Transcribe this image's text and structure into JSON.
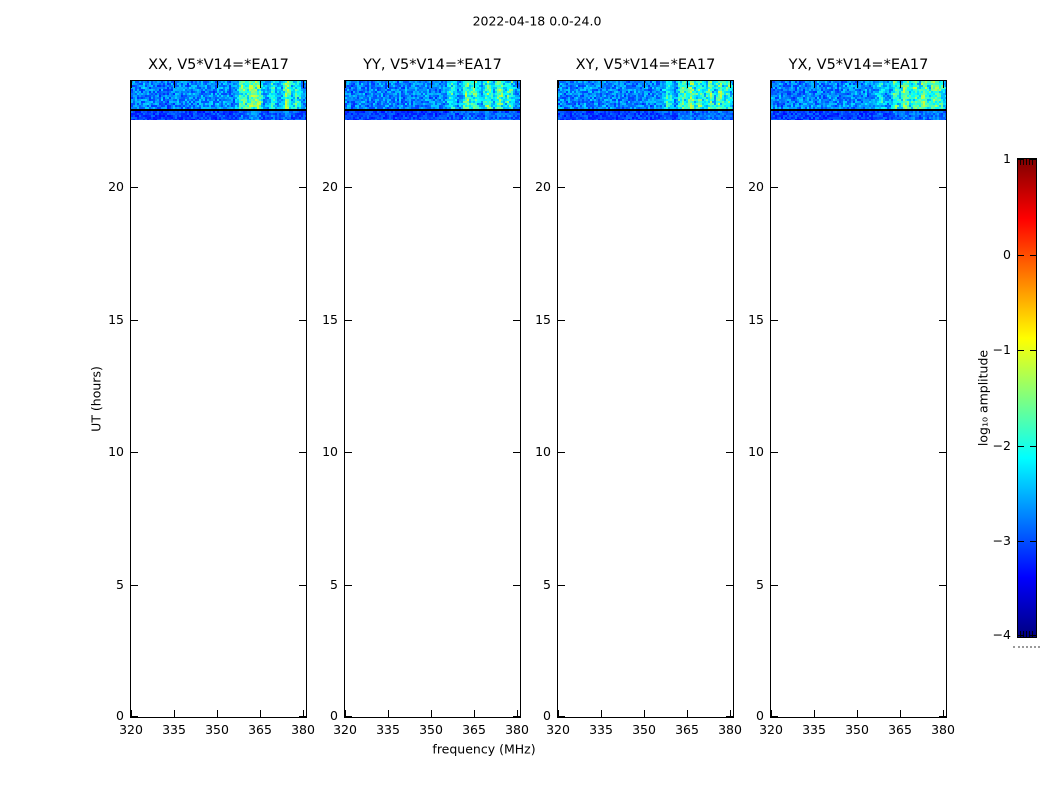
{
  "figure": {
    "title": "2022-04-18 0.0-24.0",
    "xlabel": "frequency (MHz)",
    "ylabel": "UT (hours)"
  },
  "labels": {
    "panel_titles": [
      "XX, V5*V14=*EA17",
      "YY, V5*V14=*EA17",
      "XY, V5*V14=*EA17",
      "YX, V5*V14=*EA17"
    ],
    "x_ticks": [
      "320",
      "335",
      "350",
      "365",
      "380"
    ],
    "y_ticks": [
      "0",
      "5",
      "10",
      "15",
      "20"
    ],
    "colorbar_ticks": [
      "1",
      "0",
      "−1",
      "−2",
      "−3",
      "−4"
    ],
    "colorbar_label": "log₁₀ amplitude"
  },
  "colors": {
    "background": "#ffffff",
    "axis": "#000000",
    "colormap": "jet",
    "jet_stops": [
      "#000080",
      "#0000ff",
      "#00ffff",
      "#ffff00",
      "#ff0000",
      "#800000"
    ]
  },
  "chart_data": {
    "type": "heatmap",
    "title": "2022-04-18 0.0-24.0",
    "xlabel": "frequency (MHz)",
    "ylabel": "UT (hours)",
    "x_range_mhz": [
      320,
      381
    ],
    "y_range_ut_hours": [
      0,
      24
    ],
    "x_tick_values": [
      320,
      335,
      350,
      365,
      380
    ],
    "y_tick_values": [
      0,
      5,
      10,
      15,
      20
    ],
    "colorbar": {
      "label": "log10 amplitude",
      "range": [
        -4,
        1
      ],
      "tick_values": [
        1,
        0,
        -1,
        -2,
        -3,
        -4
      ],
      "colormap": "jet"
    },
    "observed_interval_ut_hours": [
      22.5,
      24.0
    ],
    "gap_line_ut_hours": 22.9,
    "background_level_log10_amplitude": [
      -3.2,
      -2.5
    ],
    "panels": [
      {
        "pol": "XX",
        "title": "XX, V5*V14=*EA17",
        "rfi_streaks": [
          {
            "mhz": 358.5,
            "strength": 0.7
          },
          {
            "mhz": 361.5,
            "strength": 1.0
          },
          {
            "mhz": 364.0,
            "strength": 0.85
          },
          {
            "mhz": 369.0,
            "strength": 0.55
          },
          {
            "mhz": 374.0,
            "strength": 0.95
          },
          {
            "mhz": 377.5,
            "strength": 0.5
          }
        ]
      },
      {
        "pol": "YY",
        "title": "YY, V5*V14=*EA17",
        "rfi_streaks": [
          {
            "mhz": 357.0,
            "strength": 0.5
          },
          {
            "mhz": 362.0,
            "strength": 0.85
          },
          {
            "mhz": 365.0,
            "strength": 0.7
          },
          {
            "mhz": 369.5,
            "strength": 0.9
          },
          {
            "mhz": 373.5,
            "strength": 0.85
          },
          {
            "mhz": 377.0,
            "strength": 0.6
          }
        ]
      },
      {
        "pol": "XY",
        "title": "XY, V5*V14=*EA17",
        "rfi_streaks": [
          {
            "mhz": 358.0,
            "strength": 0.5
          },
          {
            "mhz": 363.0,
            "strength": 0.8
          },
          {
            "mhz": 366.0,
            "strength": 0.9
          },
          {
            "mhz": 369.0,
            "strength": 0.7
          },
          {
            "mhz": 372.5,
            "strength": 0.8
          },
          {
            "mhz": 376.0,
            "strength": 0.85
          },
          {
            "mhz": 379.0,
            "strength": 0.6
          }
        ]
      },
      {
        "pol": "YX",
        "title": "YX, V5*V14=*EA17",
        "rfi_streaks": [
          {
            "mhz": 358.0,
            "strength": 0.45
          },
          {
            "mhz": 363.0,
            "strength": 0.75
          },
          {
            "mhz": 366.5,
            "strength": 0.9
          },
          {
            "mhz": 370.0,
            "strength": 0.8
          },
          {
            "mhz": 373.0,
            "strength": 0.9
          },
          {
            "mhz": 376.5,
            "strength": 0.8
          },
          {
            "mhz": 379.0,
            "strength": 0.55
          }
        ]
      }
    ]
  }
}
